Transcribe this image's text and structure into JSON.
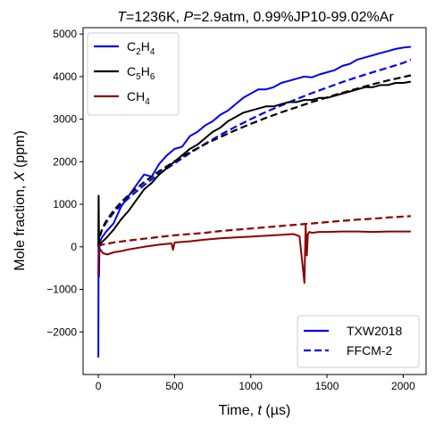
{
  "chart_data": {
    "type": "line",
    "title": {
      "parts": [
        {
          "t": "T",
          "italic": true
        },
        {
          "t": "=1236K, "
        },
        {
          "t": "P",
          "italic": true
        },
        {
          "t": "=2.9atm, 0.99%JP10-99.02%Ar"
        }
      ]
    },
    "xlabel": {
      "parts": [
        {
          "t": "Time, "
        },
        {
          "t": "t",
          "italic": true
        },
        {
          "t": " (µs)"
        }
      ]
    },
    "ylabel": {
      "parts": [
        {
          "t": "Mole fraction, "
        },
        {
          "t": "X",
          "italic": true
        },
        {
          "t": " (ppm)"
        }
      ]
    },
    "xlim": [
      -100,
      2150
    ],
    "ylim": [
      -3000,
      5150
    ],
    "xticks": [
      0,
      500,
      1000,
      1500,
      2000
    ],
    "xtick_labels": [
      "0",
      "500",
      "1000",
      "1500",
      "2000"
    ],
    "yticks": [
      -2000,
      -1000,
      0,
      1000,
      2000,
      3000,
      4000,
      5000
    ],
    "ytick_labels": [
      "−2000",
      "−1000",
      "0",
      "1000",
      "2000",
      "3000",
      "4000",
      "5000"
    ],
    "grid": false,
    "species_legend": {
      "placement": "top-left",
      "entries": [
        {
          "label_parts": [
            {
              "t": "C"
            },
            {
              "t": "2",
              "sub": true
            },
            {
              "t": "H"
            },
            {
              "t": "4",
              "sub": true
            }
          ],
          "color": "#0000ee"
        },
        {
          "label_parts": [
            {
              "t": "C"
            },
            {
              "t": "5",
              "sub": true
            },
            {
              "t": "H"
            },
            {
              "t": "6",
              "sub": true
            }
          ],
          "color": "#000000"
        },
        {
          "label_parts": [
            {
              "t": "CH"
            },
            {
              "t": "4",
              "sub": true
            }
          ],
          "color": "#8b0000"
        }
      ]
    },
    "style_legend": {
      "placement": "bottom-right",
      "entries": [
        {
          "label": "TXW2018",
          "dash": "solid",
          "color": "#0000ee"
        },
        {
          "label": "FFCM-2",
          "dash": "dashed",
          "color": "#0000ee"
        }
      ]
    },
    "series": [
      {
        "style": "measured",
        "color": "#0000ee",
        "x": [
          0,
          2,
          5,
          8,
          20,
          50,
          100,
          150,
          200,
          250,
          300,
          350,
          400,
          450,
          500,
          550,
          600,
          650,
          700,
          750,
          800,
          850,
          900,
          950,
          1000,
          1050,
          1100,
          1150,
          1200,
          1250,
          1300,
          1350,
          1400,
          1450,
          1500,
          1550,
          1600,
          1650,
          1700,
          1750,
          1800,
          1850,
          1900,
          1950,
          2000,
          2050
        ],
        "y": [
          -2600,
          300,
          -700,
          100,
          200,
          350,
          550,
          950,
          1200,
          1450,
          1700,
          1650,
          1950,
          2150,
          2300,
          2350,
          2600,
          2700,
          2850,
          2950,
          3100,
          3200,
          3350,
          3500,
          3600,
          3700,
          3700,
          3750,
          3850,
          3900,
          3950,
          4000,
          3980,
          4050,
          4100,
          4150,
          4250,
          4300,
          4400,
          4450,
          4500,
          4550,
          4600,
          4650,
          4680,
          4700
        ]
      },
      {
        "style": "model",
        "color": "#0000ee",
        "x": [
          0,
          10,
          25,
          50,
          100,
          150,
          200,
          300,
          400,
          500,
          600,
          700,
          800,
          900,
          1000,
          1100,
          1200,
          1300,
          1400,
          1500,
          1600,
          1700,
          1800,
          1900,
          2000,
          2050
        ],
        "y": [
          0,
          250,
          400,
          560,
          800,
          980,
          1150,
          1450,
          1720,
          1960,
          2200,
          2420,
          2630,
          2820,
          3000,
          3170,
          3320,
          3470,
          3610,
          3740,
          3870,
          3990,
          4100,
          4210,
          4320,
          4400
        ]
      },
      {
        "style": "measured",
        "color": "#000000",
        "x": [
          0,
          2,
          5,
          8,
          20,
          50,
          100,
          150,
          200,
          250,
          300,
          350,
          400,
          450,
          500,
          550,
          600,
          650,
          700,
          750,
          800,
          850,
          900,
          950,
          1000,
          1050,
          1100,
          1150,
          1200,
          1250,
          1300,
          1350,
          1400,
          1450,
          1500,
          1550,
          1600,
          1650,
          1700,
          1750,
          1800,
          1850,
          1900,
          1950,
          2000,
          2050
        ],
        "y": [
          0,
          1200,
          100,
          50,
          100,
          200,
          400,
          650,
          850,
          1100,
          1350,
          1500,
          1700,
          1850,
          2000,
          2150,
          2300,
          2400,
          2550,
          2700,
          2800,
          2950,
          3050,
          3150,
          3200,
          3250,
          3300,
          3300,
          3350,
          3400,
          3400,
          3450,
          3450,
          3500,
          3500,
          3550,
          3600,
          3650,
          3700,
          3750,
          3750,
          3800,
          3800,
          3850,
          3850,
          3880
        ]
      },
      {
        "style": "model",
        "color": "#000000",
        "x": [
          0,
          10,
          25,
          50,
          100,
          150,
          200,
          300,
          400,
          500,
          600,
          700,
          800,
          900,
          1000,
          1100,
          1200,
          1300,
          1400,
          1500,
          1600,
          1700,
          1800,
          1900,
          2000,
          2050
        ],
        "y": [
          0,
          250,
          420,
          600,
          850,
          1050,
          1220,
          1520,
          1780,
          2010,
          2220,
          2410,
          2580,
          2740,
          2890,
          3030,
          3160,
          3280,
          3400,
          3510,
          3620,
          3720,
          3820,
          3910,
          3990,
          4030
        ]
      },
      {
        "style": "measured",
        "color": "#8b0000",
        "x": [
          0,
          2,
          5,
          10,
          30,
          60,
          100,
          150,
          200,
          300,
          400,
          480,
          490,
          500,
          600,
          700,
          800,
          900,
          1000,
          1100,
          1200,
          1280,
          1320,
          1345,
          1352,
          1360,
          1368,
          1375,
          1385,
          1400,
          1450,
          1500,
          1600,
          1700,
          1800,
          1900,
          2000,
          2050
        ],
        "y": [
          -700,
          -200,
          -100,
          -50,
          -150,
          -180,
          -130,
          -100,
          -60,
          0,
          50,
          80,
          -70,
          100,
          130,
          170,
          200,
          220,
          240,
          260,
          280,
          300,
          250,
          -600,
          -850,
          500,
          -200,
          300,
          350,
          330,
          350,
          350,
          360,
          360,
          350,
          360,
          360,
          360
        ]
      },
      {
        "style": "model",
        "color": "#8b0000",
        "x": [
          0,
          10,
          25,
          50,
          100,
          200,
          300,
          400,
          500,
          600,
          700,
          800,
          900,
          1000,
          1100,
          1200,
          1300,
          1400,
          1500,
          1600,
          1700,
          1800,
          1900,
          2000,
          2050
        ],
        "y": [
          0,
          30,
          50,
          70,
          100,
          150,
          190,
          230,
          270,
          300,
          330,
          370,
          400,
          430,
          460,
          490,
          520,
          550,
          580,
          610,
          640,
          660,
          690,
          710,
          720
        ]
      }
    ]
  }
}
